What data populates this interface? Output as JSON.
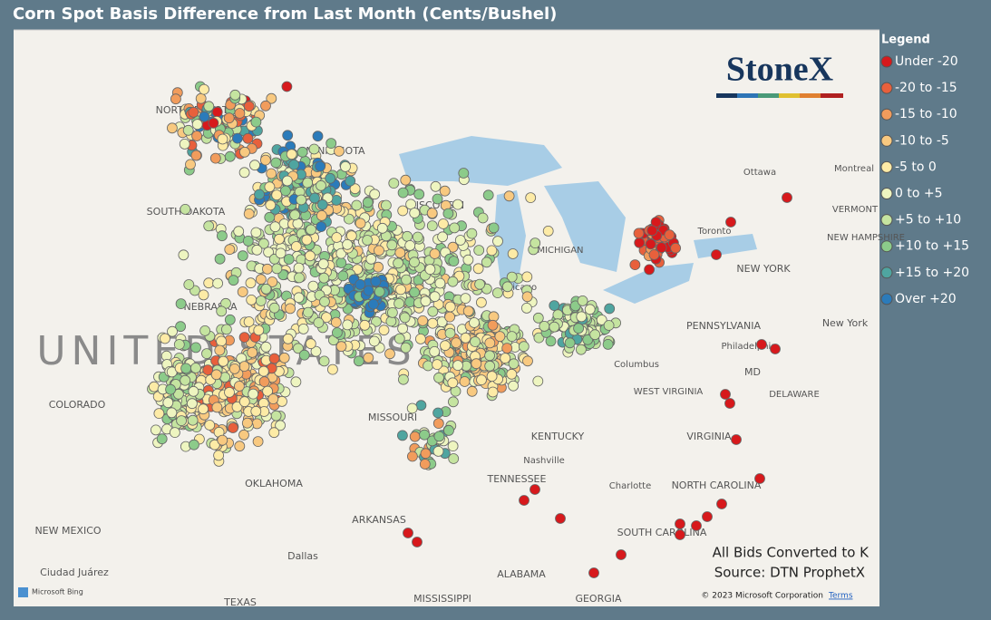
{
  "header": {
    "title": "Corn Spot Basis Difference from Last Month (Cents/Bushel)"
  },
  "legend": {
    "title": "Legend",
    "items": [
      {
        "label": "Under -20",
        "color": "#d7191c"
      },
      {
        "label": "-20 to -15",
        "color": "#e8603c"
      },
      {
        "label": "-15 to -10",
        "color": "#f19c5c"
      },
      {
        "label": "-10 to -5",
        "color": "#f8c980"
      },
      {
        "label": "-5 to 0",
        "color": "#fdeba6"
      },
      {
        "label": "0 to +5",
        "color": "#eef5c0"
      },
      {
        "label": "+5 to +10",
        "color": "#c5e4a0"
      },
      {
        "label": "+10 to +15",
        "color": "#8ccb8a"
      },
      {
        "label": "+15 to +20",
        "color": "#4fa5a0"
      },
      {
        "label": "Over +20",
        "color": "#2b7bba"
      }
    ]
  },
  "map": {
    "labels": [
      "NORTH DAKOTA",
      "MINNESOTA",
      "SOUTH DAKOTA",
      "WISCONSIN",
      "NEBRASKA",
      "UNITED STATES",
      "COLORADO",
      "MISSOURI",
      "KENTUCKY",
      "TENNESSEE",
      "OKLAHOMA",
      "ARKANSAS",
      "NEW MEXICO",
      "Dallas",
      "ALABAMA",
      "GEORGIA",
      "MISSISSIPPI",
      "TEXAS",
      "Ciudad Juárez",
      "Chicago",
      "Nashville",
      "Columbus",
      "WEST VIRGINIA",
      "VIRGINIA",
      "NORTH CAROLINA",
      "SOUTH CAROLINA",
      "PENNSYLVANIA",
      "NEW YORK",
      "New York",
      "Philadelphia",
      "MD",
      "DELAWARE",
      "Toronto",
      "Ottawa",
      "Montreal",
      "VERMONT",
      "NEW HAMPSHIRE",
      "Charlotte",
      "MICHIGAN"
    ]
  },
  "logo": "StoneX",
  "notes": {
    "conversion": "All Bids Converted to K",
    "source": "Source: DTN ProphetX"
  },
  "footer": {
    "bing": "Microsoft Bing",
    "copyright": "© 2023 Microsoft Corporation",
    "terms": "Terms"
  }
}
